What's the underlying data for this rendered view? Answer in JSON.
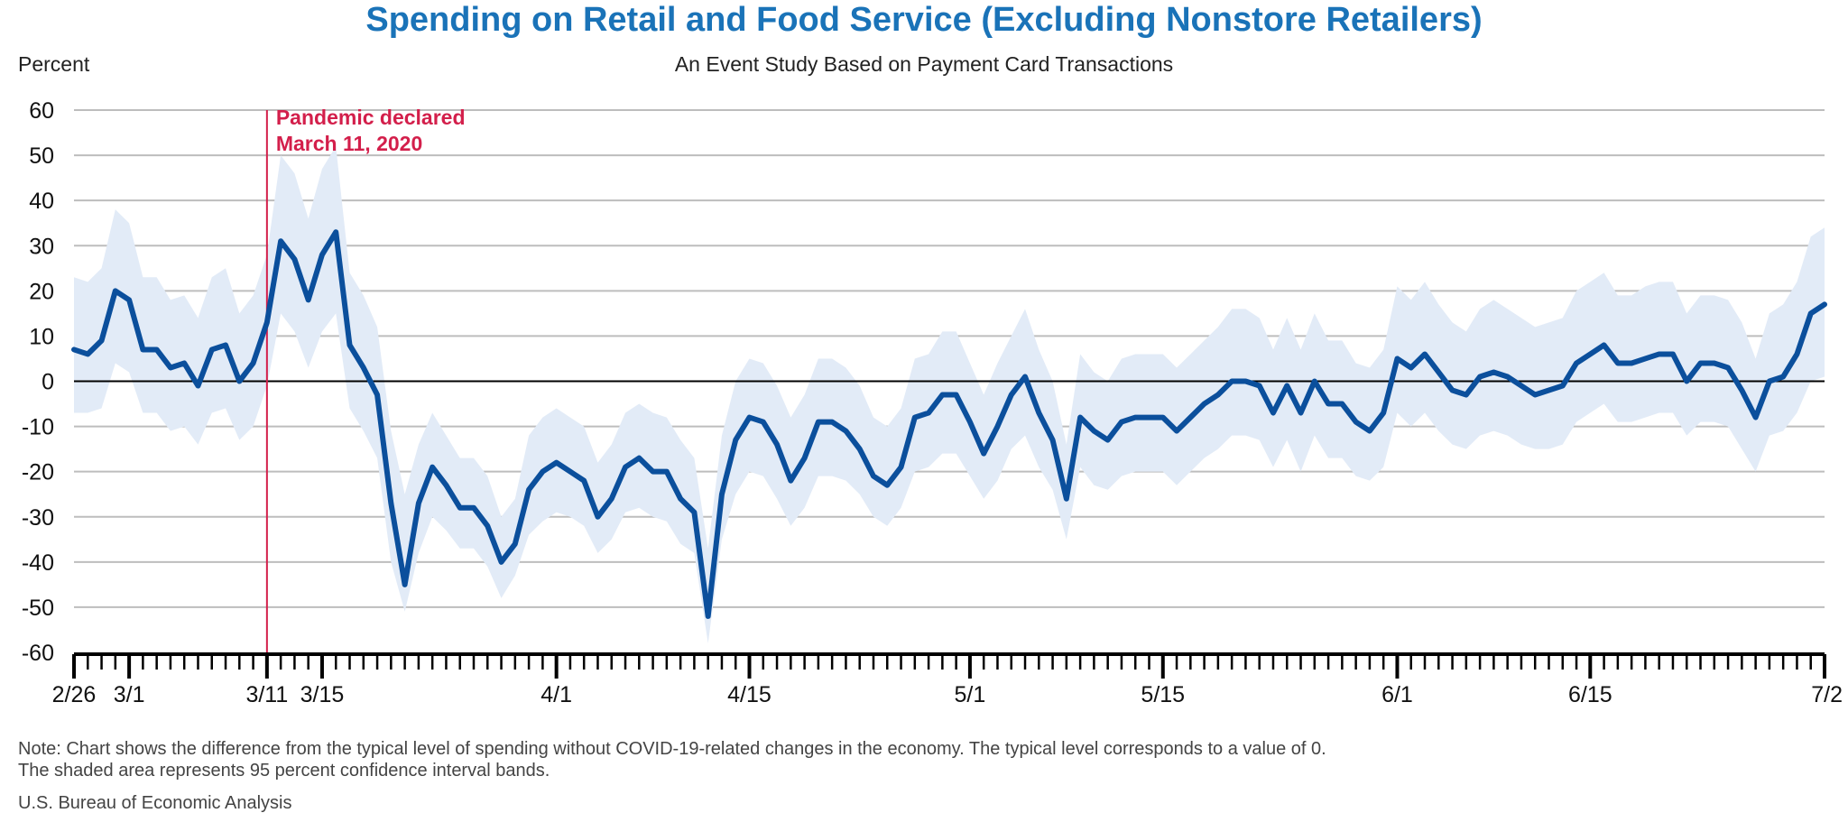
{
  "title": "Spending on Retail and Food Service (Excluding Nonstore Retailers)",
  "subtitle": "An Event Study Based on Payment Card Transactions",
  "y_unit": "Percent",
  "note_line1": "Note: Chart shows the difference from the typical level of spending without COVID-19-related changes in the economy. The typical level corresponds to a value of 0.",
  "note_line2": "The shaded area represents 95 percent confidence interval bands.",
  "source": "U.S. Bureau of Economic Analysis",
  "colors": {
    "line": "#0b4f9c",
    "band": "#e2ebf7",
    "event": "#d31f4b",
    "title": "#1a73b8",
    "grid": "#bdbdbd",
    "zero": "#000000"
  },
  "chart_data": {
    "type": "line",
    "title": "Spending on Retail and Food Service (Excluding Nonstore Retailers)",
    "subtitle": "An Event Study Based on Payment Card Transactions",
    "xlabel": "",
    "ylabel": "Percent",
    "ylim": [
      -60,
      60
    ],
    "yticks": [
      60,
      50,
      40,
      30,
      20,
      10,
      0,
      -10,
      -20,
      -30,
      -40,
      -50,
      -60
    ],
    "grid": true,
    "x_start": "2020-02-26",
    "x_end": "2020-07-02",
    "x_tick_labels": [
      {
        "date": "2020-02-26",
        "label": "2/26"
      },
      {
        "date": "2020-03-01",
        "label": "3/1"
      },
      {
        "date": "2020-03-11",
        "label": "3/11"
      },
      {
        "date": "2020-03-15",
        "label": "3/15"
      },
      {
        "date": "2020-04-01",
        "label": "4/1"
      },
      {
        "date": "2020-04-15",
        "label": "4/15"
      },
      {
        "date": "2020-05-01",
        "label": "5/1"
      },
      {
        "date": "2020-05-15",
        "label": "5/15"
      },
      {
        "date": "2020-06-01",
        "label": "6/1"
      },
      {
        "date": "2020-06-15",
        "label": "6/15"
      },
      {
        "date": "2020-07-02",
        "label": "7/2"
      }
    ],
    "event": {
      "date": "2020-03-11",
      "label_line1": "Pandemic declared",
      "label_line2": "March 11, 2020"
    },
    "series": [
      {
        "values": [
          7,
          6,
          9,
          20,
          18,
          7,
          7,
          3,
          4,
          -1,
          7,
          8,
          0,
          4,
          13,
          31,
          27,
          18,
          28,
          33,
          8,
          3,
          -3,
          -27,
          -45,
          -27,
          -19,
          -23,
          -28,
          -28,
          -32,
          -40,
          -36,
          -24,
          -20,
          -18,
          -20,
          -22,
          -30,
          -26,
          -19,
          -17,
          -20,
          -20,
          -26,
          -29,
          -52,
          -25,
          -13,
          -8,
          -9,
          -14,
          -22,
          -17,
          -9,
          -9,
          -11,
          -15,
          -21,
          -23,
          -19,
          -8,
          -7,
          -3,
          -3,
          -9,
          -16,
          -10,
          -3,
          1,
          -7,
          -13,
          -26,
          -8,
          -11,
          -13,
          -9,
          -8,
          -8,
          -8,
          -11,
          -8,
          -5,
          -3,
          0,
          0,
          -1,
          -7,
          -1,
          -7,
          0,
          -5,
          -5,
          -9,
          -11,
          -7,
          5,
          3,
          6,
          2,
          -2,
          -3,
          1,
          2,
          1,
          -1,
          -3,
          -2,
          -1,
          4,
          6,
          8,
          4,
          4,
          5,
          6,
          6,
          0,
          4,
          4,
          3,
          -2,
          -8,
          0,
          1,
          6,
          15,
          17
        ]
      },
      {
        "values_upper": [
          23,
          22,
          25,
          38,
          35,
          23,
          23,
          18,
          19,
          14,
          23,
          25,
          15,
          19,
          28,
          50,
          46,
          36,
          47,
          52,
          24,
          19,
          12,
          -11,
          -25,
          -14,
          -7,
          -12,
          -17,
          -17,
          -21,
          -30,
          -26,
          -12,
          -8,
          -6,
          -8,
          -10,
          -18,
          -14,
          -7,
          -5,
          -7,
          -8,
          -13,
          -17,
          -37,
          -12,
          0,
          5,
          4,
          -1,
          -8,
          -3,
          5,
          5,
          3,
          -1,
          -8,
          -10,
          -6,
          5,
          6,
          11,
          11,
          4,
          -3,
          4,
          10,
          16,
          7,
          0,
          -14,
          6,
          2,
          0,
          5,
          6,
          6,
          6,
          3,
          6,
          9,
          12,
          16,
          16,
          14,
          7,
          14,
          7,
          15,
          9,
          9,
          4,
          3,
          7,
          21,
          18,
          22,
          17,
          13,
          11,
          16,
          18,
          16,
          14,
          12,
          13,
          14,
          20,
          22,
          24,
          19,
          19,
          21,
          22,
          22,
          15,
          19,
          19,
          18,
          13,
          5,
          15,
          17,
          22,
          32,
          34
        ],
        "values_lower": [
          -7,
          -7,
          -6,
          4,
          2,
          -7,
          -7,
          -11,
          -10,
          -14,
          -7,
          -6,
          -13,
          -10,
          -1,
          15,
          11,
          3,
          11,
          15,
          -6,
          -11,
          -17,
          -40,
          -51,
          -38,
          -30,
          -33,
          -37,
          -37,
          -41,
          -48,
          -43,
          -34,
          -31,
          -29,
          -30,
          -32,
          -38,
          -35,
          -29,
          -28,
          -30,
          -31,
          -36,
          -38,
          -58,
          -35,
          -25,
          -20,
          -21,
          -26,
          -32,
          -28,
          -21,
          -21,
          -22,
          -25,
          -30,
          -32,
          -28,
          -20,
          -19,
          -16,
          -16,
          -21,
          -26,
          -22,
          -15,
          -12,
          -19,
          -24,
          -35,
          -19,
          -23,
          -24,
          -21,
          -20,
          -20,
          -20,
          -23,
          -20,
          -17,
          -15,
          -12,
          -12,
          -13,
          -19,
          -13,
          -20,
          -12,
          -17,
          -17,
          -21,
          -22,
          -19,
          -7,
          -10,
          -7,
          -11,
          -14,
          -15,
          -12,
          -11,
          -12,
          -14,
          -15,
          -15,
          -14,
          -9,
          -7,
          -5,
          -9,
          -9,
          -8,
          -7,
          -7,
          -12,
          -9,
          -9,
          -10,
          -15,
          -20,
          -12,
          -11,
          -7,
          0,
          1
        ]
      }
    ]
  }
}
